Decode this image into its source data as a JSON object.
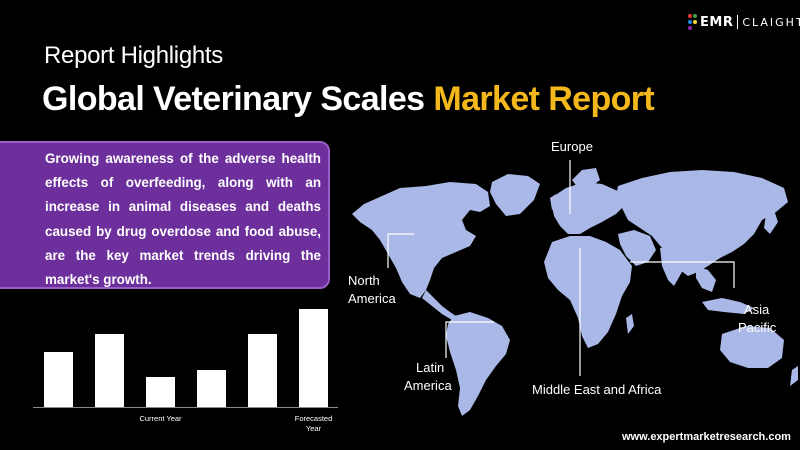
{
  "logo": {
    "brand": "EMR",
    "partner": "CLAIGHT"
  },
  "header": {
    "eyebrow": "Report Highlights",
    "title_main": "Global Veterinary Scales",
    "title_accent": "Market Report"
  },
  "highlight": {
    "text": "Growing awareness of the adverse health effects of overfeeding, along with an increase in animal diseases and deaths caused by drug overdose and food abuse, are the key market trends driving the market's growth."
  },
  "chart_data": {
    "type": "bar",
    "categories": [
      "",
      "",
      "Current Year",
      "",
      "",
      "Forecasted Year"
    ],
    "values": [
      55,
      73,
      30,
      37,
      73,
      98
    ],
    "title": "",
    "xlabel": "",
    "ylabel": "",
    "ylim": [
      0,
      100
    ],
    "grid": false,
    "bar_color": "#ffffff"
  },
  "map": {
    "color": "#a9b8e6",
    "regions": {
      "europe": "Europe",
      "north_america_line1": "North",
      "north_america_line2": "America",
      "latin_america_line1": "Latin",
      "latin_america_line2": "America",
      "mea": "Middle East and Africa",
      "asia_line1": "Asia",
      "asia_line2": "Pacific"
    }
  },
  "footer": {
    "website": "www.expertmarketresearch.com"
  },
  "colors": {
    "accent": "#f4b81c",
    "box_fill": "#6d2f9c",
    "box_border": "#9a5ec8",
    "background": "#000000"
  }
}
